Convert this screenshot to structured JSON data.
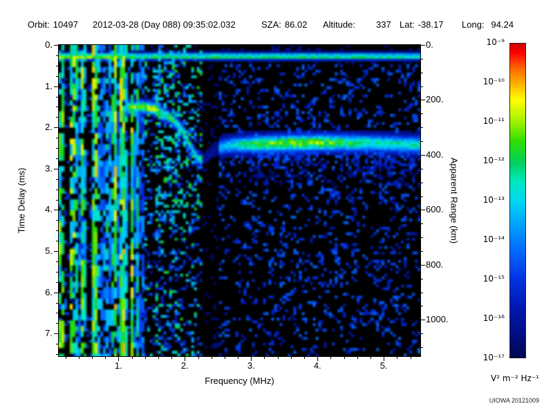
{
  "header": {
    "fields": [
      {
        "key": "orbit",
        "label": "Orbit:",
        "value": "10497"
      },
      {
        "key": "datetime",
        "label": "",
        "value": "2012-03-28 (Day 088) 09:35:02.032"
      },
      {
        "key": "sza",
        "label": "SZA:",
        "value": "86.02"
      },
      {
        "key": "altitude",
        "label": "Altitude:",
        "value": "337"
      },
      {
        "key": "latitude",
        "label": "Lat:",
        "value": "-38.17"
      },
      {
        "key": "longitude",
        "label": "Long:",
        "value": "94.24"
      }
    ]
  },
  "footer": {
    "credit": "UIOWA 20121009"
  },
  "chart_data": {
    "type": "heatmap",
    "subtype": "radar-sounder-ionogram-spectrogram",
    "title": "",
    "xlabel": "Frequency (MHz)",
    "ylabel_left": "Time Delay (ms)",
    "ylabel_right": "Apparent Range (km)",
    "x_range_mhz": [
      0.1,
      5.55
    ],
    "x_tick_values": [
      1,
      2,
      3,
      4,
      5
    ],
    "x_tick_labels": [
      "1.",
      "2.",
      "3.",
      "4.",
      "5."
    ],
    "y_range_ms": [
      0,
      7.55
    ],
    "y_tick_values": [
      0,
      1,
      2,
      3,
      4,
      5,
      6,
      7
    ],
    "y_tick_labels": [
      "0.",
      "1.",
      "2.",
      "3.",
      "4.",
      "5.",
      "6.",
      "7."
    ],
    "right_tick_values_km": [
      0,
      200,
      400,
      600,
      800,
      1000
    ],
    "right_tick_labels": [
      "0.",
      "200.",
      "400.",
      "600.",
      "800.",
      "1000."
    ],
    "km_per_ms": 150,
    "grid": false,
    "background_color": "#000000",
    "colorbar": {
      "tick_labels": [
        "10⁻⁹",
        "10⁻¹⁰",
        "10⁻¹¹",
        "10⁻¹²",
        "10⁻¹³",
        "10⁻¹⁴",
        "10⁻¹⁵",
        "10⁻¹⁶",
        "10⁻¹⁷"
      ],
      "unit": "V² m⁻² Hz⁻¹",
      "gradient_stops": [
        [
          0,
          "#d00000"
        ],
        [
          0.03,
          "#ff0000"
        ],
        [
          0.08,
          "#ff6a00"
        ],
        [
          0.13,
          "#ffb400"
        ],
        [
          0.18,
          "#ffff00"
        ],
        [
          0.25,
          "#a0f000"
        ],
        [
          0.31,
          "#30e000"
        ],
        [
          0.38,
          "#00d060"
        ],
        [
          0.44,
          "#00e8c0"
        ],
        [
          0.5,
          "#00d8f0"
        ],
        [
          0.57,
          "#00a8ff"
        ],
        [
          0.65,
          "#0070ff"
        ],
        [
          0.74,
          "#0038e8"
        ],
        [
          0.84,
          "#0018b0"
        ],
        [
          0.93,
          "#000d80"
        ],
        [
          1,
          "#000850"
        ]
      ]
    },
    "features": {
      "surface_reflection_ms": 0.28,
      "noise_band_max_mhz": 1.38,
      "noise_gap_mhz": [
        1.38,
        1.54
      ],
      "dropout_band_mhz": [
        2.28,
        2.52
      ],
      "echo_trace_mhz_ms": [
        [
          1.12,
          1.52
        ],
        [
          1.35,
          1.5
        ],
        [
          1.55,
          1.55
        ],
        [
          1.7,
          1.68
        ],
        [
          1.85,
          1.85
        ],
        [
          1.95,
          2.05
        ],
        [
          2.05,
          2.35
        ],
        [
          2.15,
          2.65
        ],
        [
          2.22,
          2.8
        ],
        [
          2.3,
          2.75
        ],
        [
          2.45,
          2.55
        ],
        [
          2.6,
          2.45
        ],
        [
          2.8,
          2.42
        ],
        [
          3.2,
          2.4
        ],
        [
          3.6,
          2.38
        ],
        [
          4.0,
          2.37
        ],
        [
          4.4,
          2.37
        ],
        [
          4.8,
          2.38
        ],
        [
          5.1,
          2.4
        ],
        [
          5.45,
          2.42
        ]
      ]
    }
  }
}
